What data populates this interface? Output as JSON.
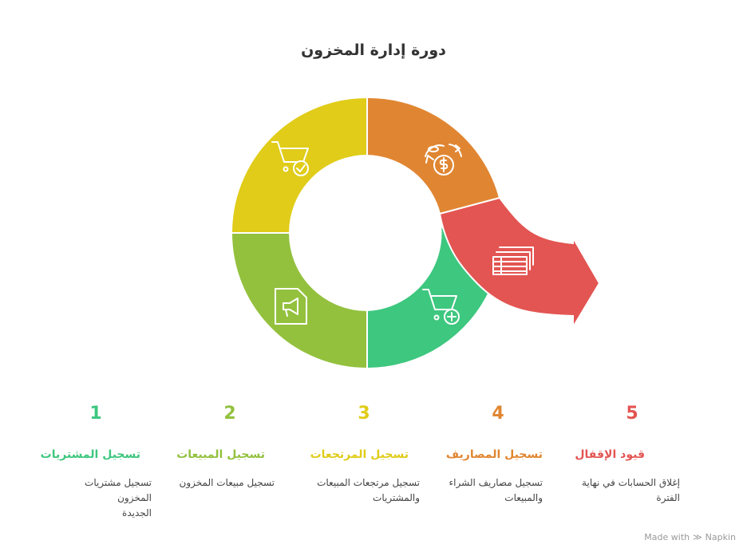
{
  "title": "دورة إدارة المخزون",
  "steps": [
    {
      "number": "1",
      "label": "تسجيل المشتريات",
      "desc_line1": "تسجيل مشتريات المخزون",
      "desc_line2": "الجديدة",
      "color": "#3ec77f",
      "icon": "cart-check-icon"
    },
    {
      "number": "2",
      "label": "تسجيل المبيعات",
      "desc_line1": "تسجيل مبيعات المخزون",
      "desc_line2": "",
      "color": "#93c13e",
      "icon": "megaphone-icon"
    },
    {
      "number": "3",
      "label": "تسجيل المرتجعات",
      "desc_line1": "تسجيل مرتجعات المبيعات",
      "desc_line2": "والمشتريات",
      "color": "#e0cc19",
      "icon": "cart-plus-icon"
    },
    {
      "number": "4",
      "label": "تسجيل المصاريف",
      "desc_line1": "تسجيل مصاريف الشراء",
      "desc_line2": "والمبيعات",
      "color": "#e08632",
      "icon": "money-cycle-icon"
    },
    {
      "number": "5",
      "label": "قيود الإقفال",
      "desc_line1": "إغلاق الحسابات في نهاية",
      "desc_line2": "الفترة",
      "color": "#e35552",
      "icon": "cash-stack-icon"
    }
  ],
  "footer": {
    "made_with": "Made with",
    "brand": "Napkin"
  }
}
